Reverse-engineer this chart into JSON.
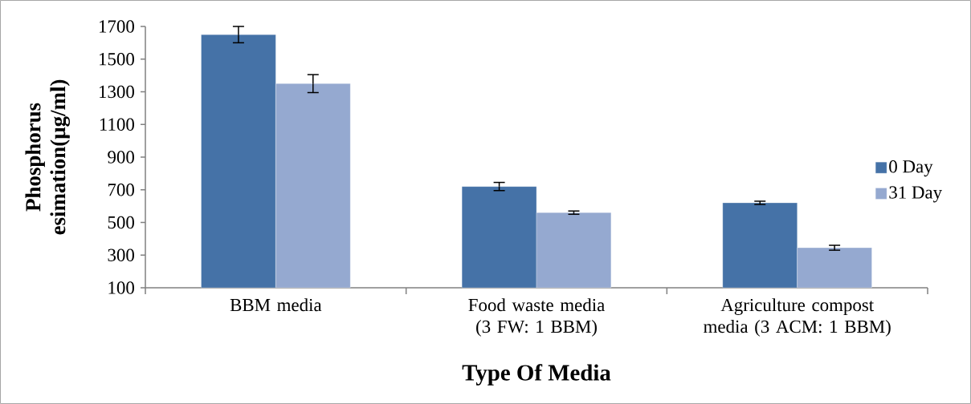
{
  "chart_data": {
    "type": "bar",
    "xlabel": "Type Of Media",
    "ylabel": "Phosphorus esimation(µg/ml)",
    "categories": [
      "BBM media",
      "Food waste media (3 FW: 1 BBM)",
      "Agriculture compost media (3 ACM: 1 BBM)"
    ],
    "series": [
      {
        "name": "0 Day",
        "color": "#4572a7",
        "values": [
          1650,
          720,
          620
        ],
        "errors": [
          50,
          25,
          10
        ]
      },
      {
        "name": "31 Day",
        "color": "#95a9d0",
        "values": [
          1350,
          560,
          345
        ],
        "errors": [
          55,
          10,
          15
        ]
      }
    ],
    "ylim": [
      100,
      1700
    ],
    "yticks": [
      100,
      300,
      500,
      700,
      900,
      1100,
      1300,
      1500,
      1700
    ],
    "grid": false,
    "legend": "right"
  }
}
